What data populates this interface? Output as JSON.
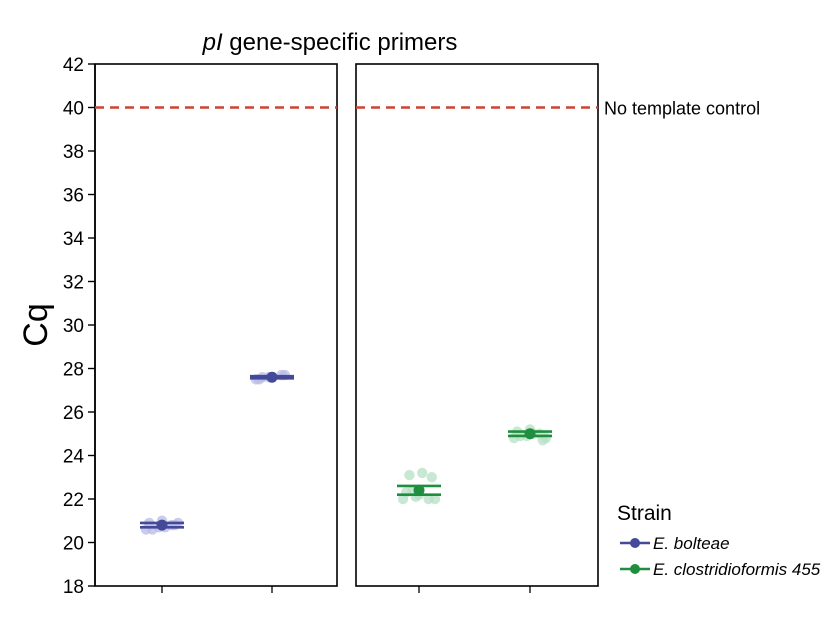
{
  "chart_data": {
    "type": "scatter",
    "title_italic": "pI",
    "title_rest": " gene-specific primers",
    "xlabel": "",
    "ylabel": "Cq",
    "ylim": [
      18,
      42
    ],
    "yticks": [
      18,
      20,
      22,
      24,
      26,
      28,
      30,
      32,
      34,
      36,
      38,
      40,
      42
    ],
    "grid": false,
    "panels": 2,
    "x_ticks_per_panel": 2,
    "reference_line": {
      "value": 40,
      "label": "No template control",
      "color": "#cc4433"
    },
    "legend": {
      "title": "Strain",
      "placement": "bottom-right"
    },
    "series": [
      {
        "name": "E. bolteae",
        "color": "#45499a",
        "light_color": "#b8bbe6",
        "panel": 0,
        "groups": [
          {
            "x": 0,
            "mean": 20.8,
            "ci": [
              20.7,
              20.9
            ],
            "points": [
              20.6,
              20.7,
              20.8,
              20.9,
              21.0,
              20.8,
              20.6,
              20.7,
              20.9
            ]
          },
          {
            "x": 1,
            "mean": 27.6,
            "ci": [
              27.55,
              27.65
            ],
            "points": [
              27.5,
              27.6,
              27.7,
              27.5,
              27.6,
              27.7,
              27.6
            ]
          }
        ]
      },
      {
        "name": "E. clostridioformis 455",
        "color": "#1f8f3f",
        "light_color": "#b5e0c4",
        "panel": 1,
        "groups": [
          {
            "x": 0,
            "mean": 22.4,
            "ci": [
              22.2,
              22.6
            ],
            "points": [
              22.0,
              22.1,
              22.0,
              22.3,
              22.2,
              23.0,
              23.1,
              23.2,
              22.0,
              22.4
            ]
          },
          {
            "x": 1,
            "mean": 25.0,
            "ci": [
              24.9,
              25.1
            ],
            "points": [
              24.8,
              24.9,
              25.0,
              25.1,
              25.2,
              24.7,
              24.9,
              25.0,
              24.8
            ]
          }
        ]
      }
    ]
  }
}
